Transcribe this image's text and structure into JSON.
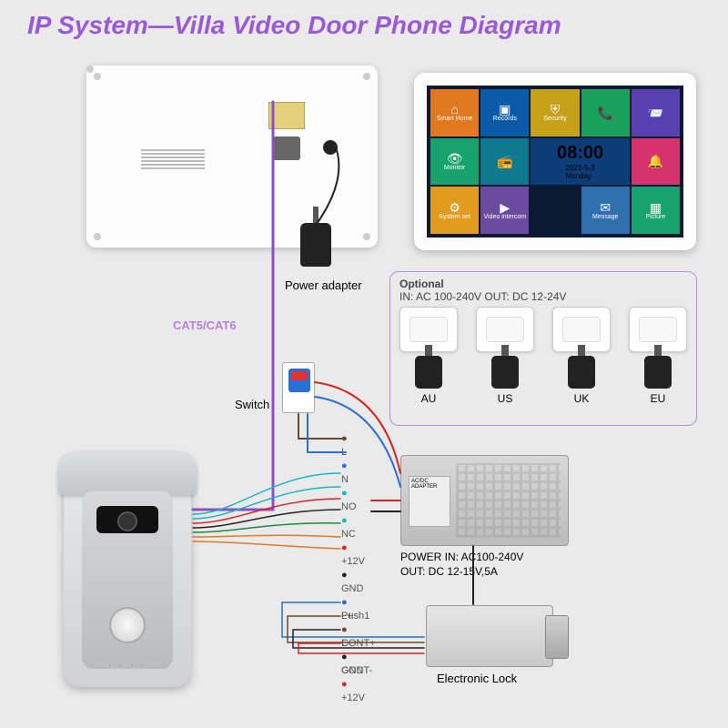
{
  "colors": {
    "title": "#9b59d6",
    "cat": "#b97fe0",
    "bg": "#eaeaea",
    "wire_purple": "#8d4fc9",
    "wire_red": "#d62222",
    "wire_blue": "#2a6fd6",
    "wire_brown": "#6b4a2a",
    "wire_green": "#1f8a3c",
    "wire_orange": "#e07b1f",
    "wire_black": "#222",
    "wire_cyan": "#16b6c4",
    "opt_border": "#b18fe6"
  },
  "title": "IP System—Villa Video Door Phone Diagram",
  "labels": {
    "power_adapter": "Power adapter",
    "cat": "CAT5/CAT6",
    "switch": "Switch",
    "psu": "POWER  IN: AC100-240V\nOUT: DC 12-15V,5A",
    "elock": "Electronic Lock"
  },
  "optional": {
    "title": "Optional",
    "spec": "IN: AC 100-240V  OUT: DC 12-24V",
    "plugs": [
      "AU",
      "US",
      "UK",
      "EU"
    ]
  },
  "screen": {
    "tiles": [
      {
        "bg": "#e0791f",
        "label": "Smart Home",
        "icon": "⌂"
      },
      {
        "bg": "#0a5aa8",
        "label": "Records",
        "icon": "▣"
      },
      {
        "bg": "#c7a11a",
        "label": "Security",
        "icon": "⛨"
      },
      {
        "bg": "#1aa05a",
        "label": "",
        "icon": "📞"
      },
      {
        "bg": "#5a3fb0",
        "label": "",
        "icon": "📨"
      },
      {
        "bg": "#17a36b",
        "label": "Monitor",
        "icon": "👁"
      },
      {
        "bg": "#0e7a8f",
        "label": "",
        "icon": "📻"
      },
      {
        "clock": true,
        "bg": "#0c3d78",
        "time": "08:00",
        "date": "2021-5-3\nMonday"
      },
      {
        "bg": "#d6336c",
        "label": "",
        "icon": "🔔"
      },
      {
        "bg": "#e29b1f",
        "label": "System set",
        "icon": "⚙"
      },
      {
        "bg": "#6b4aa0",
        "label": "Video intercom",
        "icon": "▶"
      },
      {
        "skip": true
      },
      {
        "bg": "#2f6fae",
        "label": "Message",
        "icon": "✉"
      },
      {
        "bg": "#17a36b",
        "label": "Picture",
        "icon": "▦"
      }
    ]
  },
  "pins1": [
    "L",
    "N",
    "NO",
    "NC",
    "+12V",
    "GND",
    "Push1",
    "CONT+",
    "CONT-"
  ],
  "pins2": [
    "L+",
    "L-",
    "GND",
    "+12V"
  ],
  "pin_colors1": [
    "#6b4a2a",
    "#2a6fd6",
    "#16b6c4",
    "#16b6c4",
    "#d62222",
    "#222",
    "#1f8a3c",
    "#e07b1f",
    "#e07b1f"
  ],
  "pin_colors2": [
    "#2a6fd6",
    "#6b4a2a",
    "#222",
    "#d62222"
  ]
}
